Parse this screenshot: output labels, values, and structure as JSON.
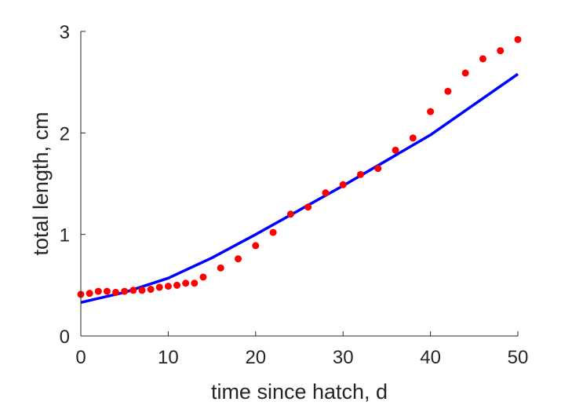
{
  "chart_data": {
    "type": "scatter",
    "title": "",
    "xlabel": "time since hatch, d",
    "ylabel": "total length, cm",
    "xlim": [
      0,
      50
    ],
    "ylim": [
      0,
      3
    ],
    "xticks": [
      0,
      10,
      20,
      30,
      40,
      50
    ],
    "yticks": [
      0,
      1,
      2,
      3
    ],
    "xtick_labels": [
      "0",
      "10",
      "20",
      "30",
      "40",
      "50"
    ],
    "ytick_labels": [
      "0",
      "1",
      "2",
      "3"
    ],
    "grid": false,
    "colors": {
      "data": "#ff0000",
      "model": "#0000ff",
      "axis": "#262626"
    },
    "series": [
      {
        "type": "scatter",
        "x": [
          0,
          1,
          2,
          3,
          4,
          5,
          6,
          7,
          8,
          9,
          10,
          11,
          12,
          13,
          14,
          16,
          18,
          20,
          22,
          24,
          26,
          28,
          30,
          32,
          34,
          36,
          38,
          40,
          42,
          44,
          46,
          48,
          50
        ],
        "y": [
          0.41,
          0.42,
          0.44,
          0.44,
          0.43,
          0.44,
          0.45,
          0.45,
          0.46,
          0.48,
          0.49,
          0.5,
          0.52,
          0.52,
          0.58,
          0.67,
          0.76,
          0.89,
          1.02,
          1.2,
          1.27,
          1.41,
          1.49,
          1.59,
          1.65,
          1.83,
          1.95,
          2.21,
          2.41,
          2.59,
          2.73,
          2.81,
          2.92
        ]
      },
      {
        "type": "line",
        "x": [
          0,
          5,
          10,
          15,
          20,
          25,
          30,
          35,
          40,
          45,
          50
        ],
        "y": [
          0.33,
          0.43,
          0.57,
          0.77,
          1.0,
          1.24,
          1.48,
          1.73,
          1.98,
          2.28,
          2.58
        ]
      }
    ]
  }
}
